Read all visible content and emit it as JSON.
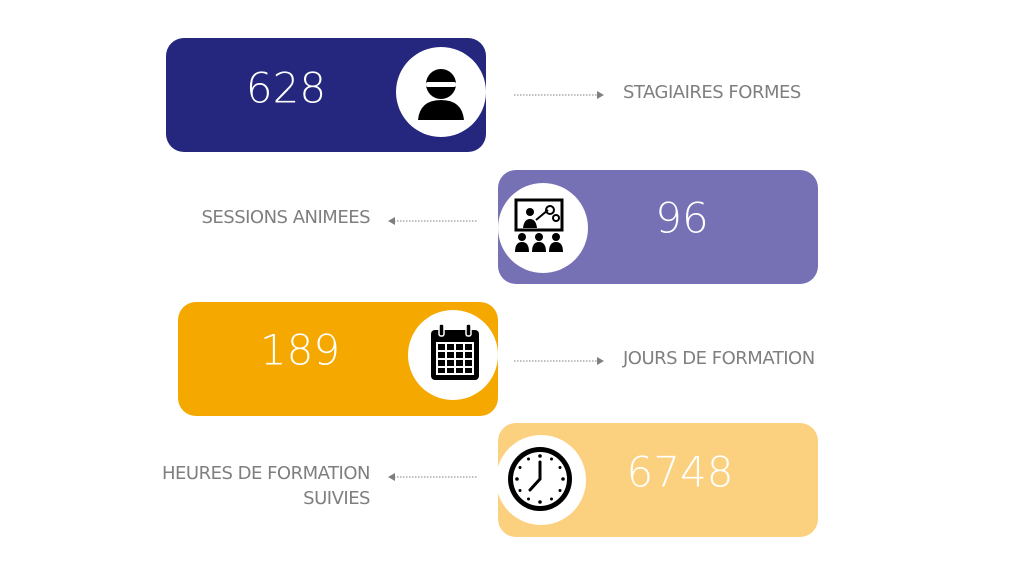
{
  "items": [
    {
      "value": 628,
      "label": [
        "STAGIAIRES FORMES"
      ]
    },
    {
      "value": 96,
      "label": [
        "SESSIONS ANIMEES"
      ]
    },
    {
      "value": 189,
      "label": [
        "JOURS DE FORMATION"
      ]
    },
    {
      "value": 6748,
      "label": [
        "HEURES DE FORMATION",
        "SUIVIES"
      ]
    }
  ]
}
